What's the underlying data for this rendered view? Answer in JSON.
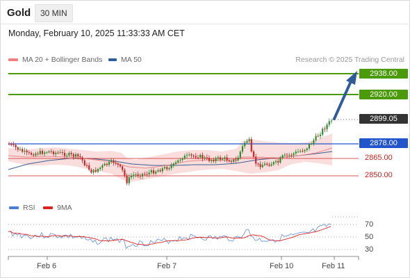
{
  "header": {
    "instrument": "Gold",
    "timeframe": "30 MIN"
  },
  "timestamp": "Monday, February 10, 2025 11:33:33 AM CET",
  "legend": [
    {
      "label": "MA 20 + Bollinger Bands",
      "color": "#f08080"
    },
    {
      "label": "MA 50",
      "color": "#2f5d9a"
    }
  ],
  "credit": "Research © 2025 Trading Central",
  "price_levels": {
    "target2": "2938.00",
    "target1": "2920.00",
    "current": "2899.05",
    "pivot": "2878.00",
    "support1": "2865.00",
    "support2": "2850.00"
  },
  "rsi_legend": [
    {
      "label": "RSI",
      "color": "#4a7fd4"
    },
    {
      "label": "9MA",
      "color": "#dd2222"
    }
  ],
  "rsi_levels": [
    "70",
    "50",
    "30"
  ],
  "x_labels": [
    "Feb 6",
    "Feb 7",
    "Feb 10",
    "Feb 11"
  ],
  "colors": {
    "target": "#4a9a0a",
    "pivot": "#2255cc",
    "support": "#cc2020",
    "current": "#333333",
    "arrow": "#2f5d9a",
    "up": "#2e8b2e",
    "down": "#c62828"
  }
}
